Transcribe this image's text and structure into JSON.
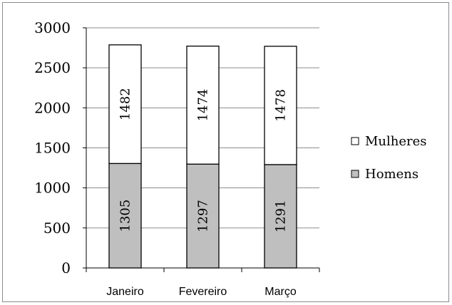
{
  "chart_data": {
    "type": "bar",
    "stacked": true,
    "categories": [
      "Janeiro",
      "Fevereiro",
      "Março"
    ],
    "series": [
      {
        "name": "Homens",
        "values": [
          1305,
          1297,
          1291
        ],
        "color": "#bfbfbf"
      },
      {
        "name": "Mulheres",
        "values": [
          1482,
          1474,
          1478
        ],
        "color": "#ffffff"
      }
    ],
    "ylim": [
      0,
      3000
    ],
    "yticks": [
      "0",
      "500",
      "1000",
      "1500",
      "2000",
      "2500",
      "3000"
    ],
    "grid": true,
    "legend": "right",
    "legend_order": [
      "Mulheres",
      "Homens"
    ]
  }
}
